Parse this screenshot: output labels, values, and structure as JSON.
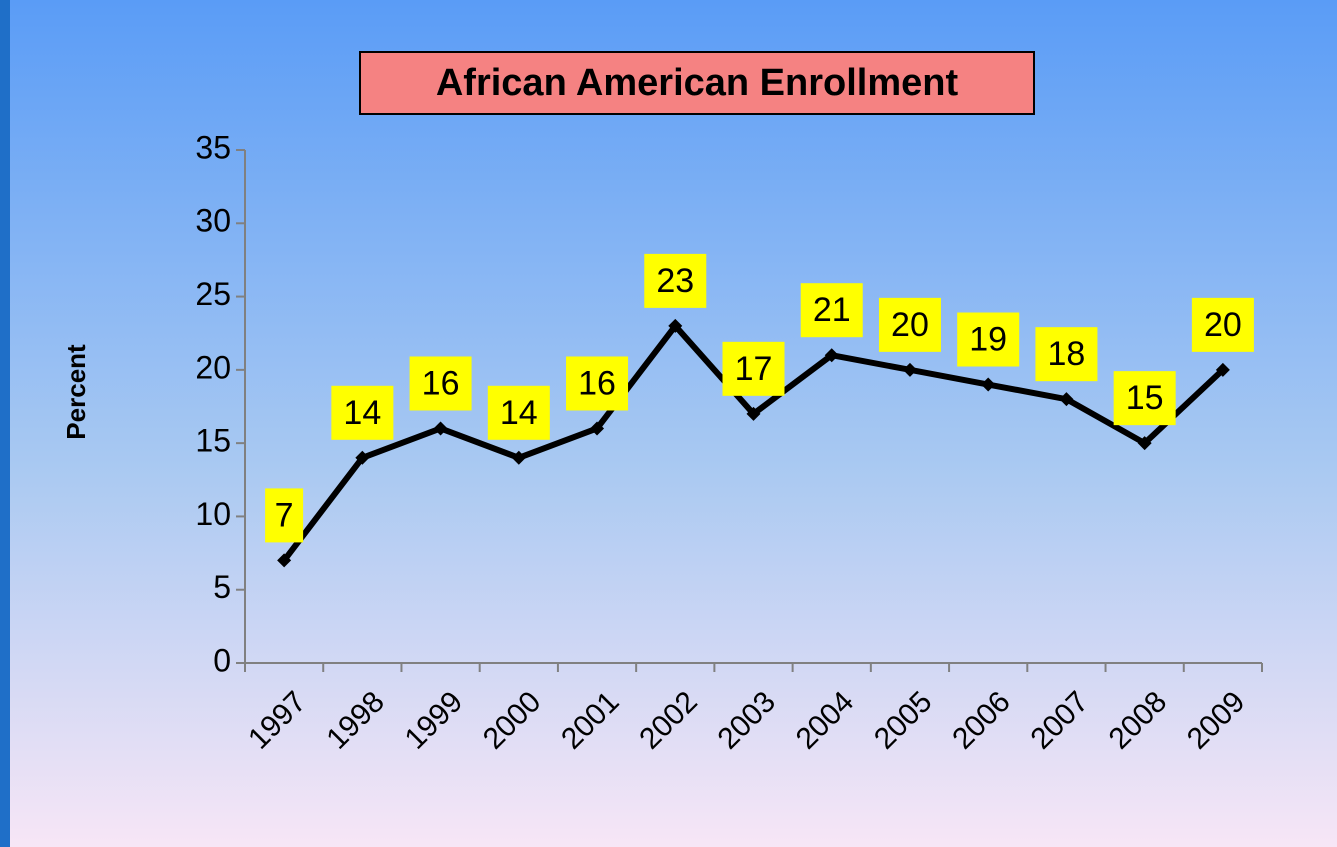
{
  "chart_data": {
    "type": "line",
    "title": "African American Enrollment",
    "y_label": "Percent",
    "categories": [
      "1997",
      "1998",
      "1999",
      "2000",
      "2001",
      "2002",
      "2003",
      "2004",
      "2005",
      "2006",
      "2007",
      "2008",
      "2009"
    ],
    "values": [
      7,
      14,
      16,
      14,
      16,
      23,
      17,
      21,
      20,
      19,
      18,
      15,
      20
    ],
    "color": "#000000",
    "label_color": "#ffff00",
    "ylim": [
      0,
      35
    ],
    "yticks": [
      0,
      5,
      10,
      15,
      20,
      25,
      30,
      35
    ],
    "grid": false
  }
}
